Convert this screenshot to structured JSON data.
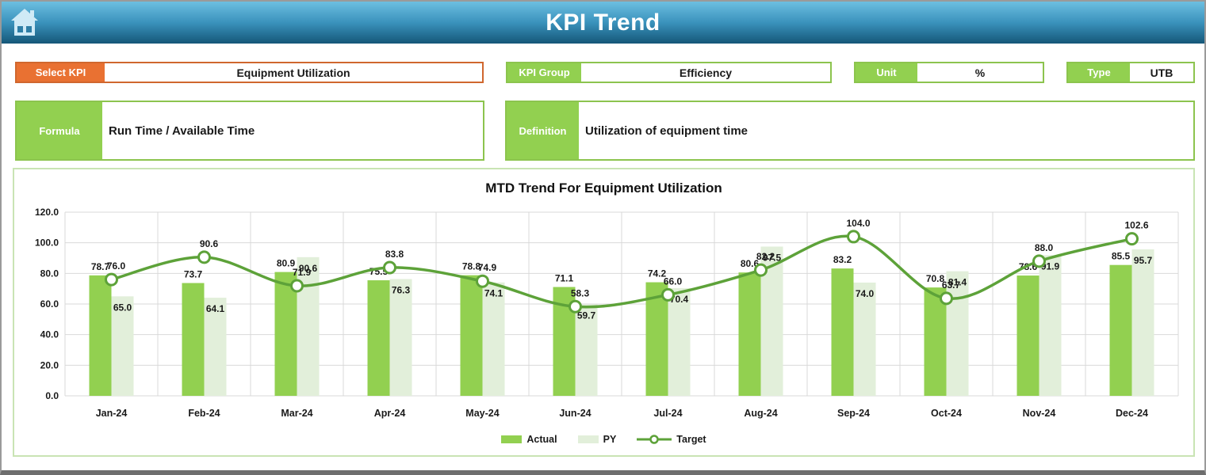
{
  "header": {
    "title": "KPI Trend"
  },
  "controls": {
    "select_kpi": {
      "label": "Select KPI",
      "value": "Equipment Utilization"
    },
    "kpi_group": {
      "label": "KPI Group",
      "value": "Efficiency"
    },
    "unit": {
      "label": "Unit",
      "value": "%"
    },
    "type": {
      "label": "Type",
      "value": "UTB"
    },
    "formula": {
      "label": "Formula",
      "value": "Run Time / Available Time"
    },
    "definition": {
      "label": "Definition",
      "value": "Utilization of equipment time"
    }
  },
  "chart_data": {
    "type": "bar",
    "title": "MTD Trend For Equipment Utilization",
    "categories": [
      "Jan-24",
      "Feb-24",
      "Mar-24",
      "Apr-24",
      "May-24",
      "Jun-24",
      "Jul-24",
      "Aug-24",
      "Sep-24",
      "Oct-24",
      "Nov-24",
      "Dec-24"
    ],
    "series": [
      {
        "name": "Actual",
        "type": "bar",
        "color": "#92d050",
        "label_position": "above",
        "values": [
          78.7,
          73.7,
          80.9,
          75.5,
          78.8,
          71.1,
          74.2,
          80.6,
          83.2,
          70.8,
          78.6,
          85.5
        ]
      },
      {
        "name": "PY",
        "type": "bar",
        "color": "#e2efda",
        "label_position": "inside",
        "values": [
          65.0,
          64.1,
          90.6,
          76.3,
          74.1,
          59.7,
          70.4,
          97.5,
          74.0,
          81.4,
          91.9,
          95.7
        ]
      },
      {
        "name": "Target",
        "type": "line",
        "color": "#5da239",
        "label_position": "above_marker",
        "values": [
          76.0,
          90.6,
          71.9,
          83.8,
          74.9,
          58.3,
          66.0,
          82.2,
          104.0,
          63.7,
          88.0,
          102.6
        ]
      }
    ],
    "ylim": [
      0,
      120
    ],
    "yticks": [
      0,
      20,
      40,
      60,
      80,
      100,
      120
    ],
    "ytick_labels": [
      "0.0",
      "20.0",
      "40.0",
      "60.0",
      "80.0",
      "100.0",
      "120.0"
    ],
    "grid": true,
    "legend_position": "bottom"
  },
  "colors": {
    "accent_green": "#92d050",
    "accent_green_border": "#8cc44e",
    "accent_orange": "#e97132",
    "peach_fill": "#fbe5d6",
    "line_green": "#5da239",
    "gridline": "#d9d9d9",
    "panel_border": "#c9e4b4",
    "header_top": "#6dbfe1",
    "header_bottom": "#155778"
  }
}
